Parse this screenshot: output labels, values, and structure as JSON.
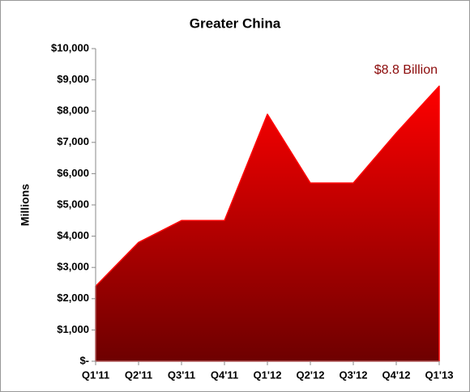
{
  "chart_data": {
    "type": "area",
    "title": "Greater China",
    "y_label": "Millions",
    "annotation": "$8.8 Billion",
    "annotation_color": "#8b0a0a",
    "categories": [
      "Q1'11",
      "Q2'11",
      "Q3'11",
      "Q4'11",
      "Q1'12",
      "Q2'12",
      "Q3'12",
      "Q4'12",
      "Q1'13"
    ],
    "values": [
      2400,
      3800,
      4500,
      4500,
      7900,
      5700,
      5700,
      7300,
      8800
    ],
    "color": "#ff0000",
    "color_dark": "#6e0000",
    "ylim": [
      0,
      10000
    ],
    "yticks": [
      {
        "value": 0,
        "label": "$-"
      },
      {
        "value": 1000,
        "label": "$1,000"
      },
      {
        "value": 2000,
        "label": "$2,000"
      },
      {
        "value": 3000,
        "label": "$3,000"
      },
      {
        "value": 4000,
        "label": "$4,000"
      },
      {
        "value": 5000,
        "label": "$5,000"
      },
      {
        "value": 6000,
        "label": "$6,000"
      },
      {
        "value": 7000,
        "label": "$7,000"
      },
      {
        "value": 8000,
        "label": "$8,000"
      },
      {
        "value": 9000,
        "label": "$9,000"
      },
      {
        "value": 10000,
        "label": "$10,000"
      }
    ],
    "grid": false
  }
}
